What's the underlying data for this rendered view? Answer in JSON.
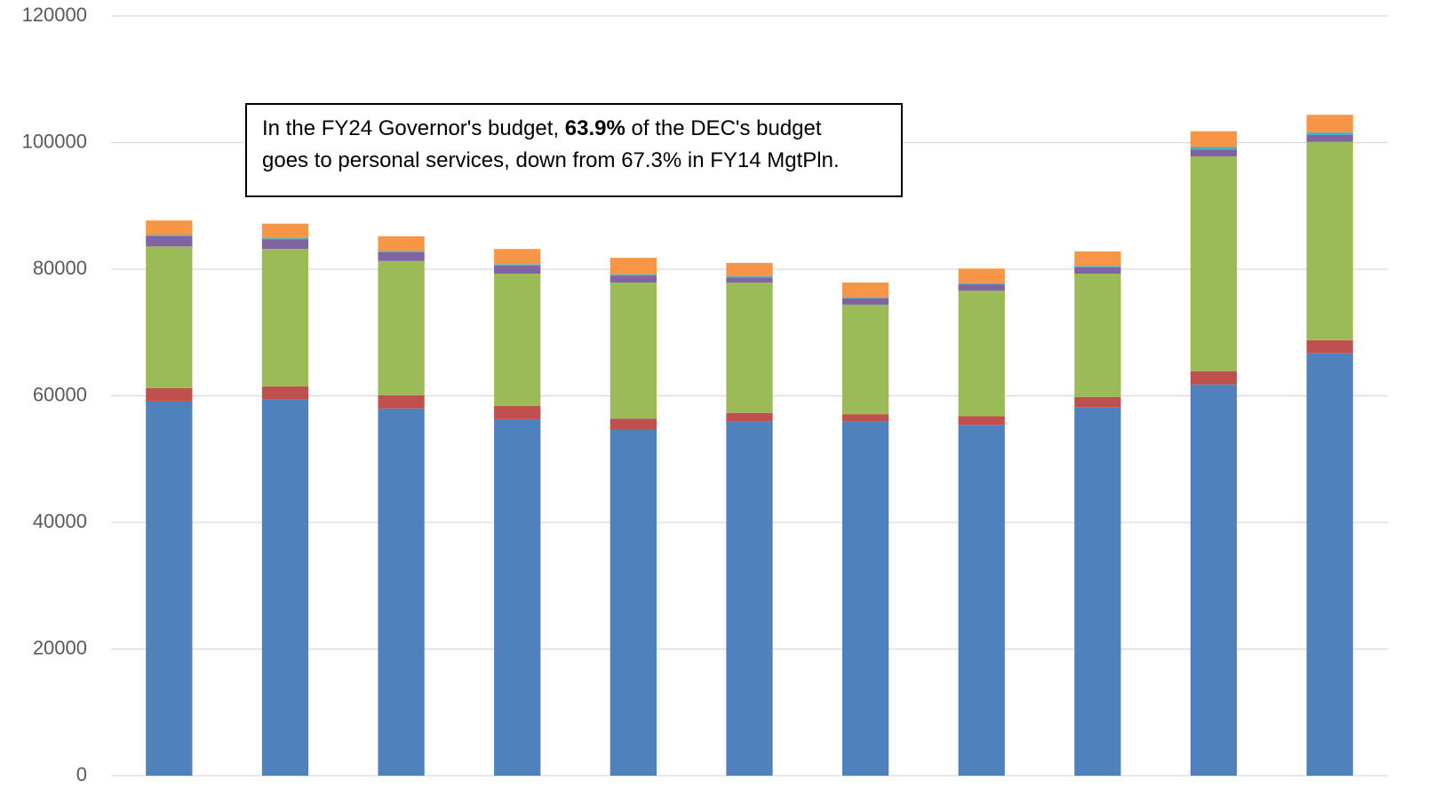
{
  "chart_data": {
    "type": "stacked_bar",
    "categories": [
      null,
      null,
      null,
      null,
      null,
      null,
      null,
      null,
      null,
      null,
      null
    ],
    "series": [
      {
        "color": "#4f81bd",
        "values": [
          59100,
          59400,
          58000,
          56300,
          54600,
          55900,
          55900,
          55400,
          58200,
          61800,
          66700
        ]
      },
      {
        "color": "#c0504d",
        "values": [
          2100,
          2100,
          2100,
          2100,
          1800,
          1400,
          1200,
          1400,
          1600,
          2100,
          2100
        ]
      },
      {
        "color": "#9bbb59",
        "values": [
          22400,
          21700,
          21200,
          20900,
          21500,
          20600,
          17300,
          19800,
          19500,
          33900,
          31300
        ]
      },
      {
        "color": "#8064a2",
        "values": [
          1600,
          1500,
          1400,
          1300,
          1100,
          800,
          1000,
          1000,
          1000,
          1100,
          1100
        ]
      },
      {
        "color": "#4bacc6",
        "values": [
          200,
          200,
          200,
          200,
          200,
          200,
          200,
          200,
          200,
          400,
          400
        ]
      },
      {
        "color": "#f79646",
        "values": [
          2300,
          2300,
          2300,
          2400,
          2600,
          2100,
          2300,
          2300,
          2300,
          2500,
          2800
        ]
      }
    ],
    "ylim": [
      0,
      120000
    ],
    "yticks": [
      0,
      20000,
      40000,
      60000,
      80000,
      100000,
      120000
    ],
    "grid": true,
    "annotation": {
      "lines": [
        [
          "In the FY24 Governor's budget, ",
          "63.9%",
          " of the DEC's budget"
        ],
        [
          "goes to personal services, down from 67.3% in FY14 MgtPln."
        ]
      ]
    }
  }
}
